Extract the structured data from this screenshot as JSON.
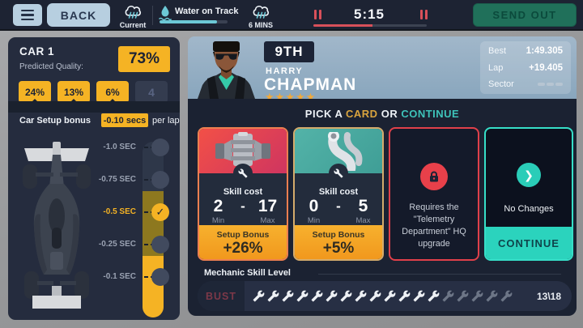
{
  "colors": {
    "accent_yellow": "#f5b324",
    "accent_teal": "#3ec3ba",
    "accent_red": "#d8505a",
    "accent_orange": "#f1981d",
    "send_green": "#20705a",
    "panel_navy": "#252c3e"
  },
  "top_bar": {
    "back_label": "BACK",
    "current_weather_label": "Current",
    "water_on_track": {
      "label": "Water on Track",
      "progress_pct": 85
    },
    "forecast_label": "6 MINS",
    "timer": {
      "value": "5:15",
      "progress_pct": 52
    },
    "send_out_label": "SEND OUT"
  },
  "car_panel": {
    "title": "CAR 1",
    "predicted_quality_label": "Predicted Quality:",
    "overall_quality": "73%",
    "part_tabs": [
      {
        "label": "24%",
        "active": true
      },
      {
        "label": "13%",
        "active": true
      },
      {
        "label": "6%",
        "active": true
      },
      {
        "label": "4",
        "active": false
      }
    ],
    "setup_bonus_label": "Car Setup bonus",
    "setup_bonus_value": "-0.10 secs",
    "setup_bonus_suffix": "per lap",
    "slider": {
      "stops": [
        {
          "label": "-1.0 SEC",
          "state": "empty"
        },
        {
          "label": "-0.75 SEC",
          "state": "empty"
        },
        {
          "label": "-0.5 SEC",
          "state": "selected"
        },
        {
          "label": "-0.25 SEC",
          "state": "filled"
        },
        {
          "label": "-0.1 SEC",
          "state": "filled"
        }
      ],
      "check_glyph": "✓"
    }
  },
  "driver_panel": {
    "position": "9TH",
    "first_name": "HARRY",
    "last_name": "CHAPMAN",
    "stars": 5,
    "stats": [
      {
        "label": "Best",
        "value": "1:49.305"
      },
      {
        "label": "Lap",
        "value": "+19.405"
      },
      {
        "label": "Sector",
        "value": ""
      }
    ]
  },
  "card_section": {
    "heading": {
      "pick": "PICK A",
      "card": "CARD",
      "or": "OR",
      "continue": "CONTINUE"
    },
    "range_separator": "-",
    "cards": [
      {
        "kind": "part",
        "part": "engine",
        "skill_cost_label": "Skill cost",
        "min": "2",
        "max": "17",
        "min_label": "Min",
        "max_label": "Max",
        "bonus_label": "Setup Bonus",
        "bonus_value": "+26%"
      },
      {
        "kind": "part",
        "part": "exhaust",
        "skill_cost_label": "Skill cost",
        "min": "0",
        "max": "5",
        "min_label": "Min",
        "max_label": "Max",
        "bonus_label": "Setup Bonus",
        "bonus_value": "+5%"
      },
      {
        "kind": "locked",
        "message": "Requires the \"Telemetry Department\" HQ upgrade"
      },
      {
        "kind": "continue",
        "label": "No Changes",
        "button_label": "CONTINUE",
        "chevron_glyph": "❯"
      }
    ]
  },
  "mechanic": {
    "label": "Mechanic Skill Level",
    "bust_label": "BUST",
    "wrenches_filled": 13,
    "wrenches_total": 18,
    "counter": "13\\18"
  }
}
